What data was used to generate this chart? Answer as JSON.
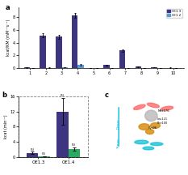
{
  "panel_a": {
    "categories": [
      "1",
      "2",
      "3",
      "4",
      "5",
      "6",
      "7",
      "8",
      "9",
      "10"
    ],
    "oe13_values": [
      0.15,
      5.1,
      4.9,
      8.2,
      0.08,
      0.5,
      2.8,
      0.25,
      0.18,
      0.12
    ],
    "oe12_values": [
      0.05,
      0.12,
      0.18,
      0.55,
      0.04,
      0.08,
      0.1,
      0.06,
      0.05,
      0.05
    ],
    "oe13_errors": [
      0.05,
      0.3,
      0.35,
      0.4,
      0.02,
      0.08,
      0.2,
      0.05,
      0.04,
      0.03
    ],
    "oe12_errors": [
      0.02,
      0.03,
      0.04,
      0.08,
      0.01,
      0.02,
      0.02,
      0.01,
      0.01,
      0.01
    ],
    "color_oe13": "#3d3580",
    "color_oe12": "#5b9bd5",
    "ylabel": "kcat/KM (mM⁻¹s⁻¹)",
    "ylim": [
      0,
      9.5
    ],
    "legend_labels": [
      "OE1.3",
      "OE1.2"
    ]
  },
  "panel_b": {
    "categories": [
      "OE1.3",
      "OE1.4"
    ],
    "bar1_values": [
      1.2,
      12.0
    ],
    "bar2_values": [
      0.3,
      2.2
    ],
    "bar1_errors": [
      0.3,
      3.5
    ],
    "bar2_errors": [
      0.1,
      0.5
    ],
    "color_bar1": "#3d3580",
    "color_bar2": "#2aaa5e",
    "ylabel": "kcat (min⁻¹)",
    "ylim": [
      0,
      16
    ],
    "yticks": [
      0,
      4,
      8,
      12,
      16
    ],
    "n_labels_bar1": [
      "(5)",
      "(5)",
      "(5)",
      "(5)"
    ],
    "n_labels_bar2": [
      "(5)",
      "(5)",
      "(5)",
      "(5)"
    ]
  },
  "background_color": "#ffffff"
}
